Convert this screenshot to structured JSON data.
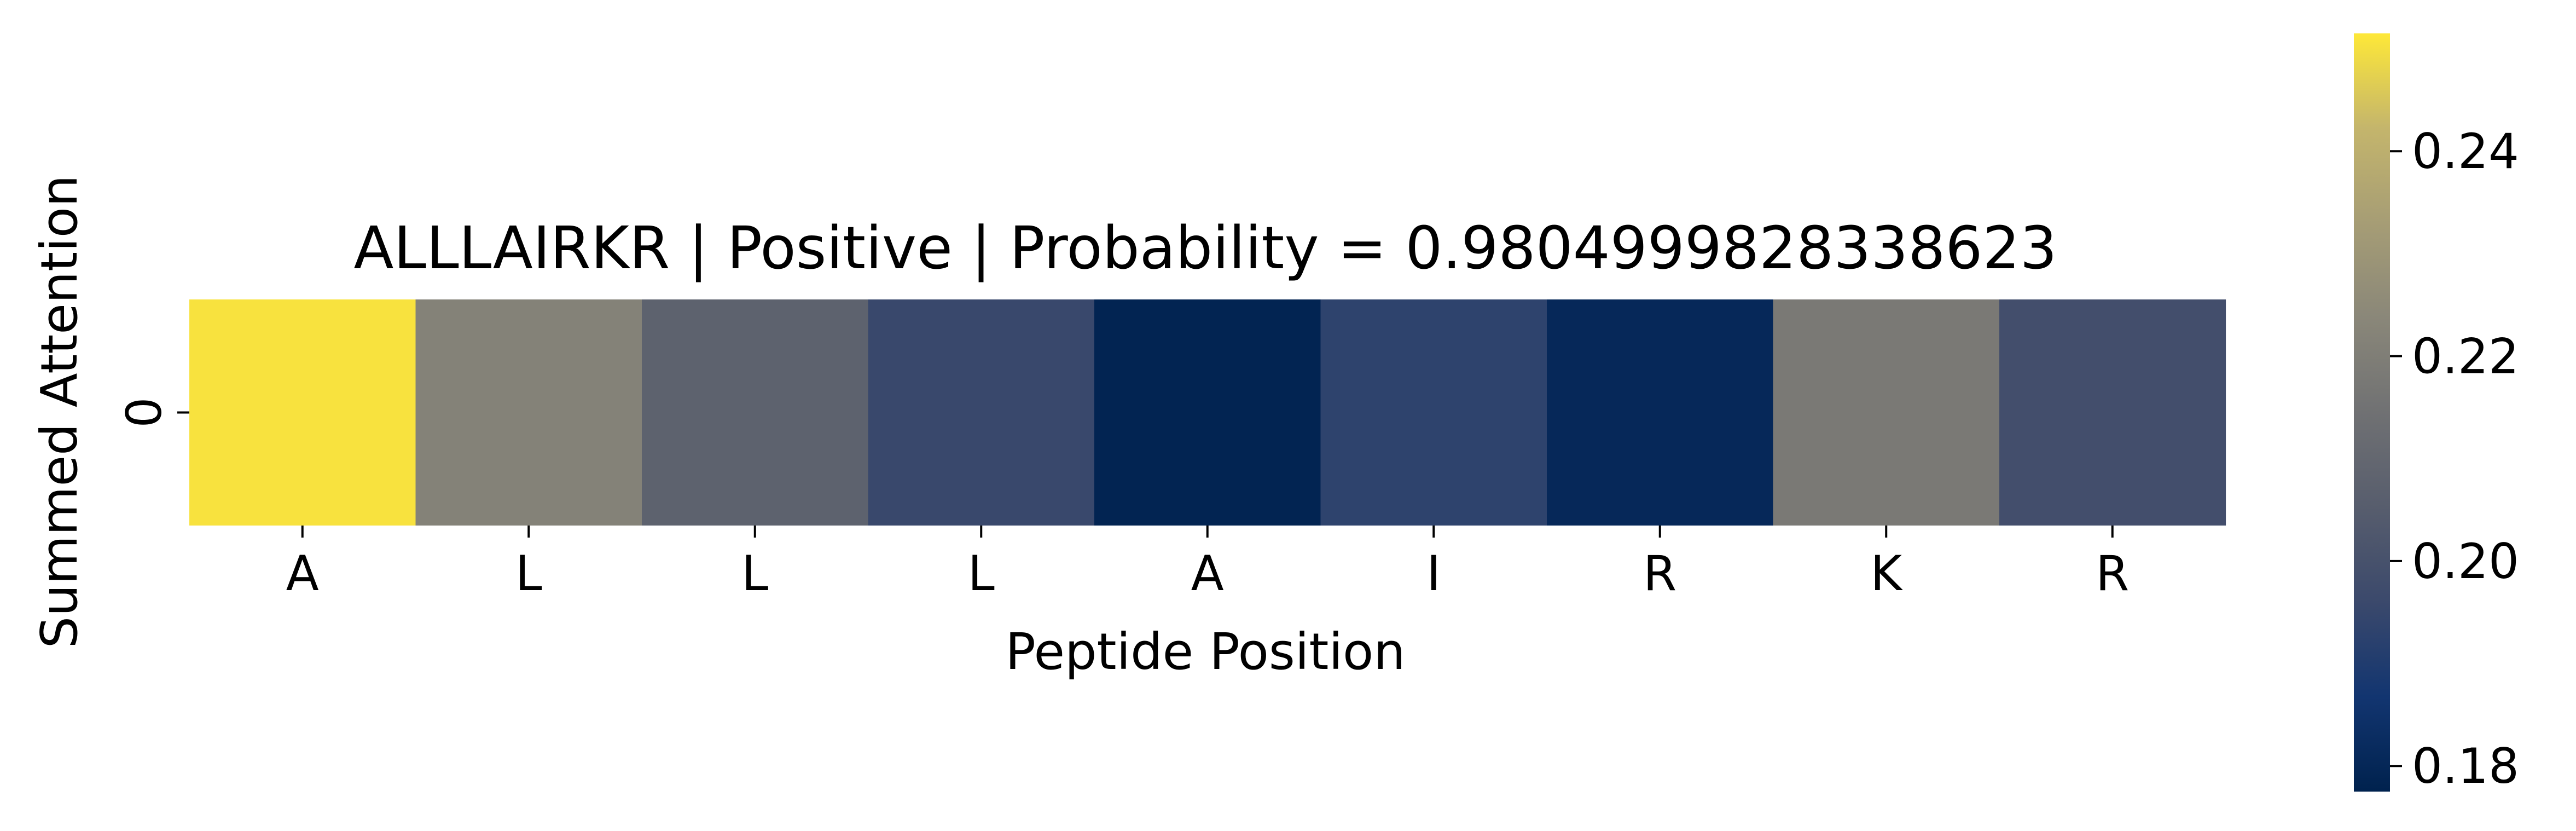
{
  "chart_data": {
    "type": "heatmap",
    "title": "ALLLAIRKR | Positive | Probability = 0.9804999828338623",
    "xlabel": "Peptide Position",
    "ylabel": "Summed Attention",
    "x_categories": [
      "A",
      "L",
      "L",
      "L",
      "A",
      "I",
      "R",
      "K",
      "R"
    ],
    "y_categories": [
      "0"
    ],
    "values": [
      [
        0.2505,
        0.2215,
        0.2075,
        0.1955,
        0.1785,
        0.193,
        0.1805,
        0.218,
        0.1985
      ]
    ],
    "colormap": "cividis",
    "color_range": [
      0.1775,
      0.2515
    ],
    "colorbar": {
      "ticks": [
        0.18,
        0.2,
        0.22,
        0.24
      ],
      "tick_labels": [
        "0.18",
        "0.20",
        "0.22",
        "0.24"
      ]
    },
    "colors": {
      "low": "#00224e",
      "mid": "#7c7b78",
      "high": "#fee838"
    }
  }
}
